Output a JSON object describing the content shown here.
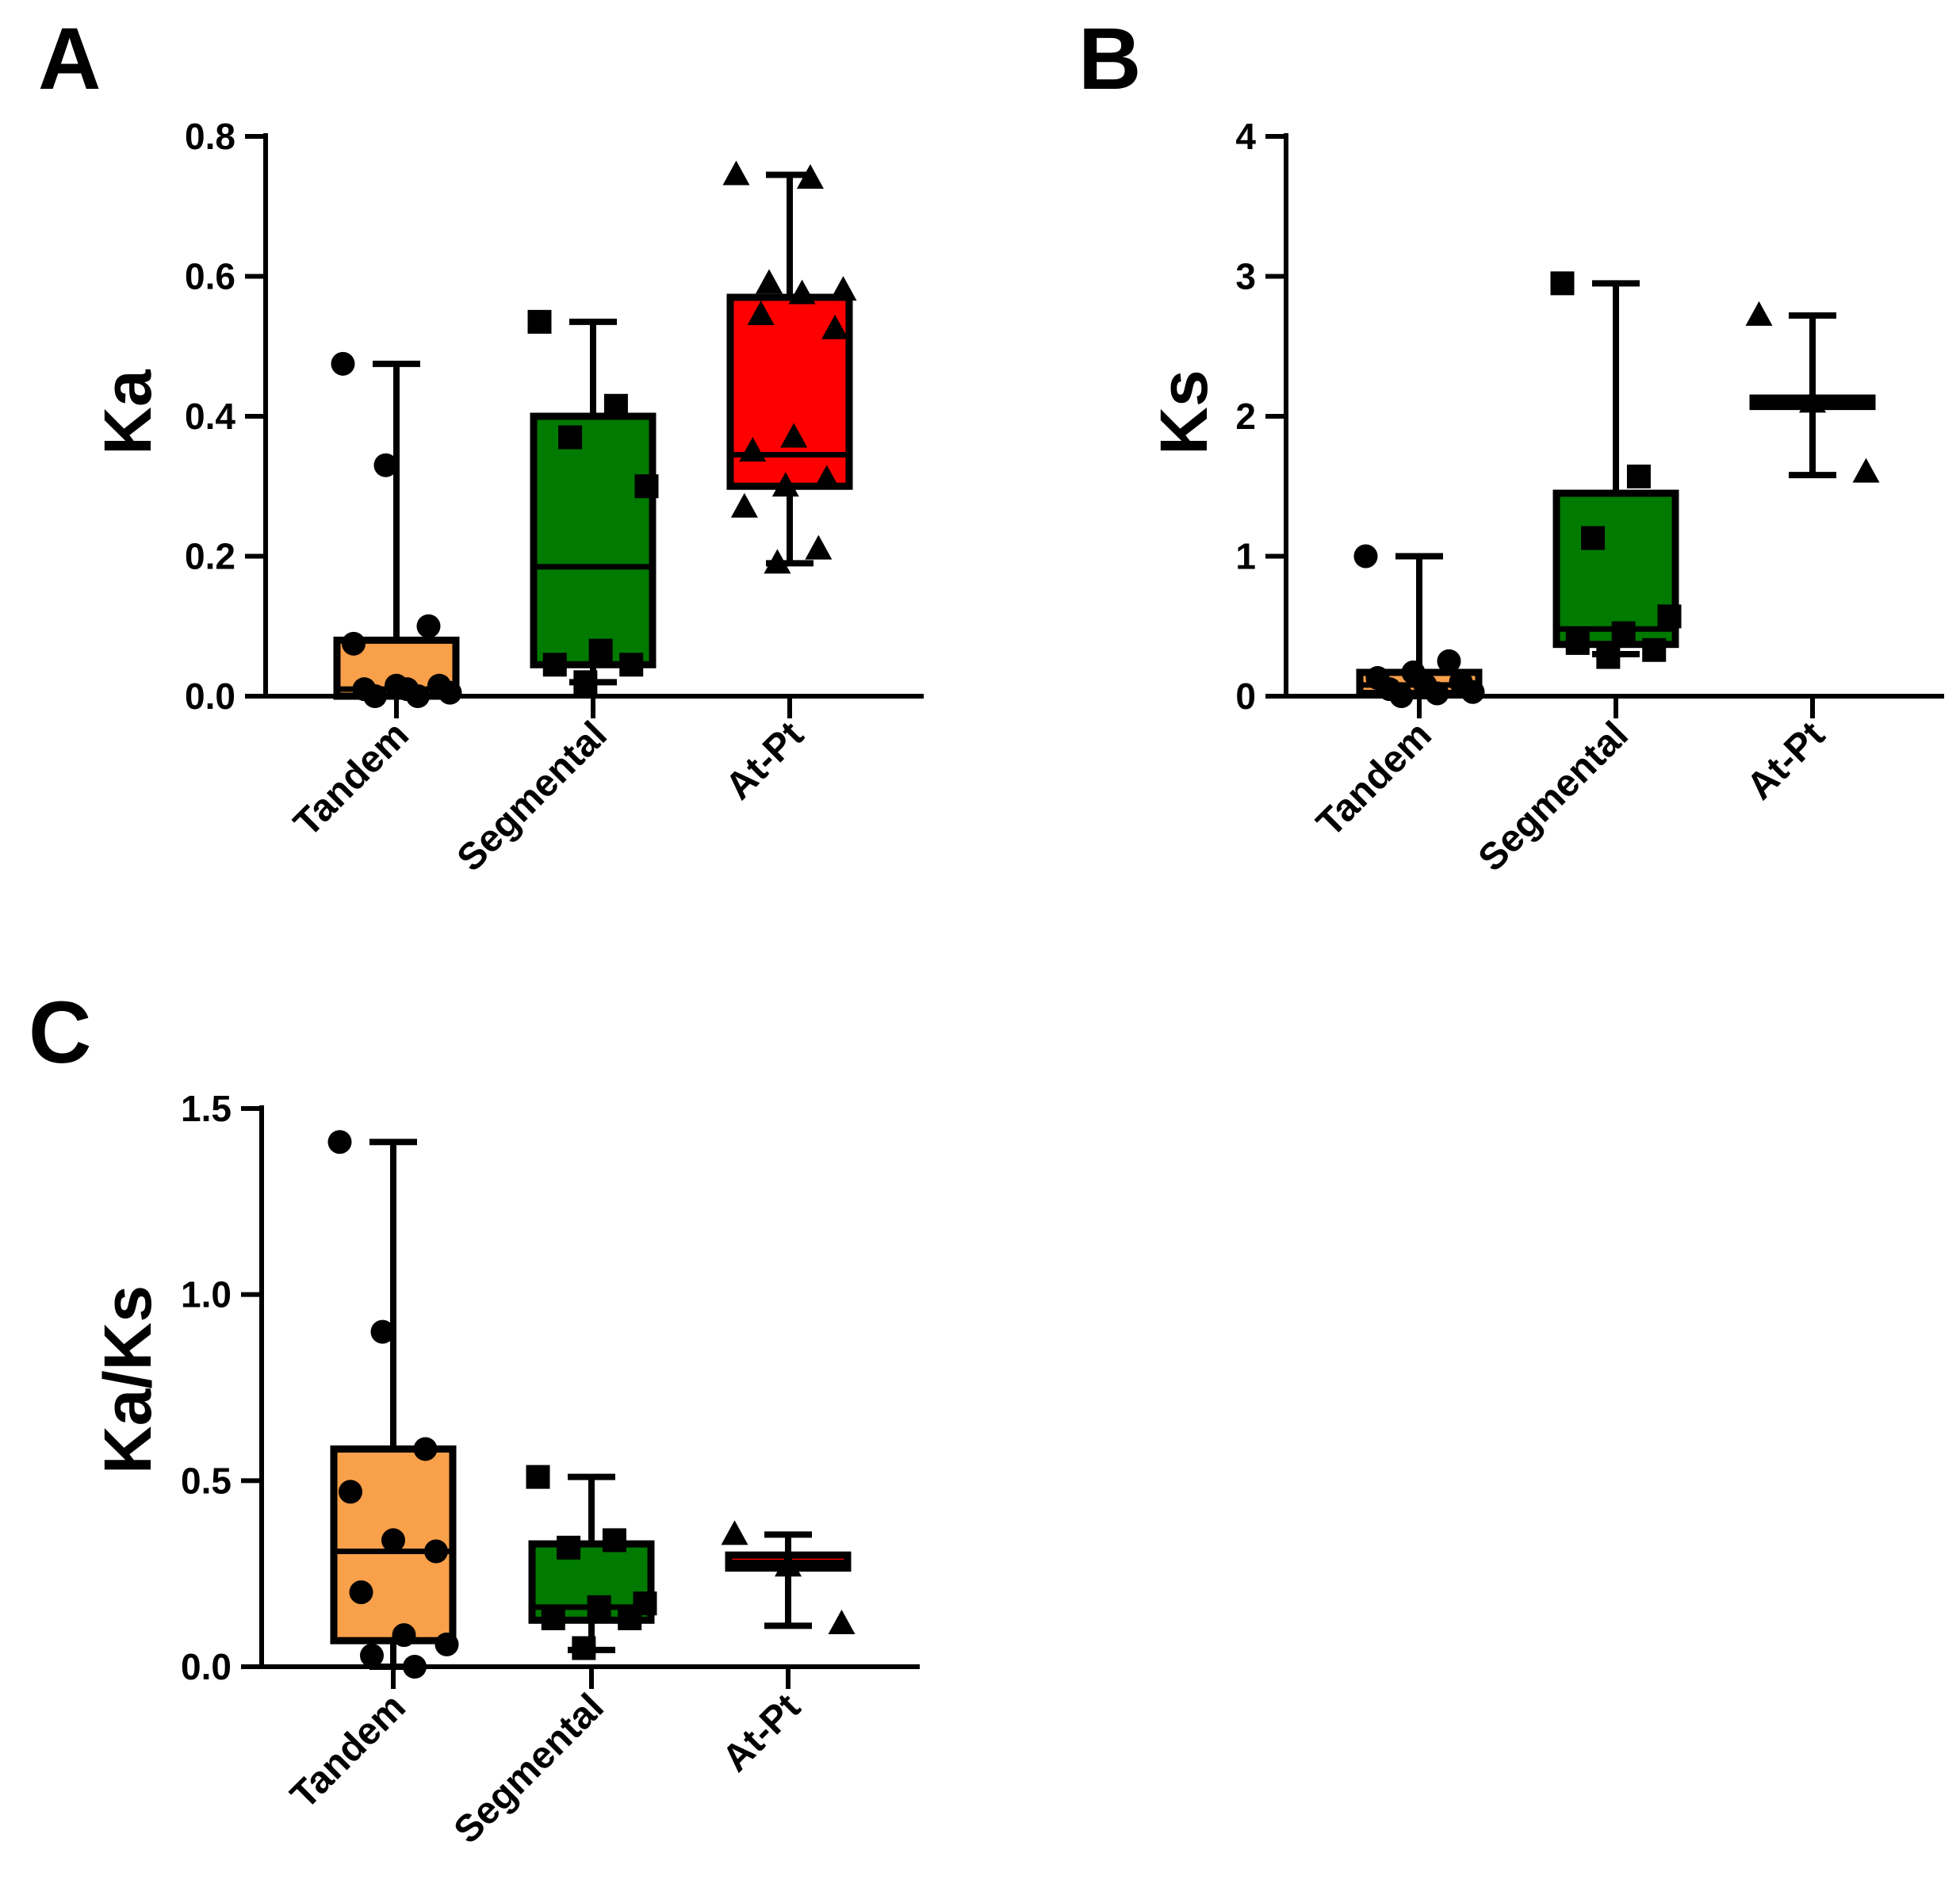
{
  "colors": {
    "tandem": "#f9a04a",
    "segmental": "#007a00",
    "atpt": "#ff0000",
    "stroke": "#000000"
  },
  "chart_data": [
    {
      "panel": "A",
      "type": "box",
      "ylabel": "Ka",
      "ylim": [
        0,
        0.8
      ],
      "yticks": [
        0.0,
        0.2,
        0.4,
        0.6,
        0.8
      ],
      "tick_labels": [
        "0.0",
        "0.2",
        "0.4",
        "0.6",
        "0.8"
      ],
      "categories": [
        "Tandem",
        "Segmental",
        "At-Pt"
      ],
      "boxes": [
        {
          "name": "Tandem",
          "marker": "circle",
          "color_key": "tandem",
          "min": 0.0,
          "q1": 0.0,
          "median": 0.01,
          "q3": 0.08,
          "max": 0.475,
          "points": [
            0.475,
            0.33,
            0.1,
            0.075,
            0.015,
            0.015,
            0.01,
            0.01,
            0.005,
            0.0,
            0.0
          ]
        },
        {
          "name": "Segmental",
          "marker": "square",
          "color_key": "segmental",
          "min": 0.02,
          "q1": 0.045,
          "median": 0.185,
          "q3": 0.4,
          "max": 0.535,
          "points": [
            0.535,
            0.415,
            0.37,
            0.3,
            0.065,
            0.045,
            0.045,
            0.02
          ]
        },
        {
          "name": "At-Pt",
          "marker": "triangle",
          "color_key": "atpt",
          "min": 0.19,
          "q1": 0.3,
          "median": 0.345,
          "q3": 0.57,
          "max": 0.745,
          "points": [
            0.745,
            0.74,
            0.59,
            0.58,
            0.575,
            0.545,
            0.525,
            0.37,
            0.35,
            0.31,
            0.3,
            0.27,
            0.21,
            0.19
          ]
        }
      ]
    },
    {
      "panel": "B",
      "type": "box",
      "ylabel": "Ks",
      "ylim": [
        0,
        4
      ],
      "yticks": [
        0,
        1,
        2,
        3,
        4
      ],
      "tick_labels": [
        "0",
        "1",
        "2",
        "3",
        "4"
      ],
      "categories": [
        "Tandem",
        "Segmental",
        "At-Pt"
      ],
      "boxes": [
        {
          "name": "Tandem",
          "marker": "circle",
          "color_key": "tandem",
          "min": 0.0,
          "q1": 0.02,
          "median": 0.08,
          "q3": 0.17,
          "max": 1.0,
          "points": [
            1.0,
            0.25,
            0.17,
            0.13,
            0.1,
            0.08,
            0.05,
            0.03,
            0.02,
            0.0
          ]
        },
        {
          "name": "Segmental",
          "marker": "square",
          "color_key": "segmental",
          "min": 0.3,
          "q1": 0.37,
          "median": 0.48,
          "q3": 1.45,
          "max": 2.95,
          "points": [
            2.95,
            1.57,
            1.13,
            0.57,
            0.45,
            0.38,
            0.33,
            0.28
          ]
        },
        {
          "name": "At-Pt",
          "marker": "triangle",
          "color_key": "atpt",
          "min": 1.58,
          "q1": 2.07,
          "median": 2.1,
          "q3": 2.13,
          "max": 2.72,
          "points": [
            2.72,
            2.1,
            1.6
          ]
        }
      ]
    },
    {
      "panel": "C",
      "type": "box",
      "ylabel": "Ka/Ks",
      "ylim": [
        0,
        1.5
      ],
      "yticks": [
        0.0,
        0.5,
        1.0,
        1.5
      ],
      "tick_labels": [
        "0.0",
        "0.5",
        "1.0",
        "1.5"
      ],
      "categories": [
        "Tandem",
        "Segmental",
        "At-Pt"
      ],
      "boxes": [
        {
          "name": "Tandem",
          "marker": "circle",
          "color_key": "tandem",
          "min": 0.0,
          "q1": 0.07,
          "median": 0.31,
          "q3": 0.585,
          "max": 1.41,
          "points": [
            1.41,
            0.9,
            0.585,
            0.47,
            0.34,
            0.31,
            0.2,
            0.085,
            0.06,
            0.03,
            0.0
          ]
        },
        {
          "name": "Segmental",
          "marker": "square",
          "color_key": "segmental",
          "min": 0.045,
          "q1": 0.125,
          "median": 0.16,
          "q3": 0.33,
          "max": 0.51,
          "points": [
            0.51,
            0.34,
            0.32,
            0.17,
            0.16,
            0.13,
            0.13,
            0.05
          ]
        },
        {
          "name": "At-Pt",
          "marker": "triangle",
          "color_key": "atpt",
          "min": 0.11,
          "q1": 0.265,
          "median": 0.28,
          "q3": 0.3,
          "max": 0.355,
          "points": [
            0.355,
            0.27,
            0.115
          ]
        }
      ]
    }
  ]
}
